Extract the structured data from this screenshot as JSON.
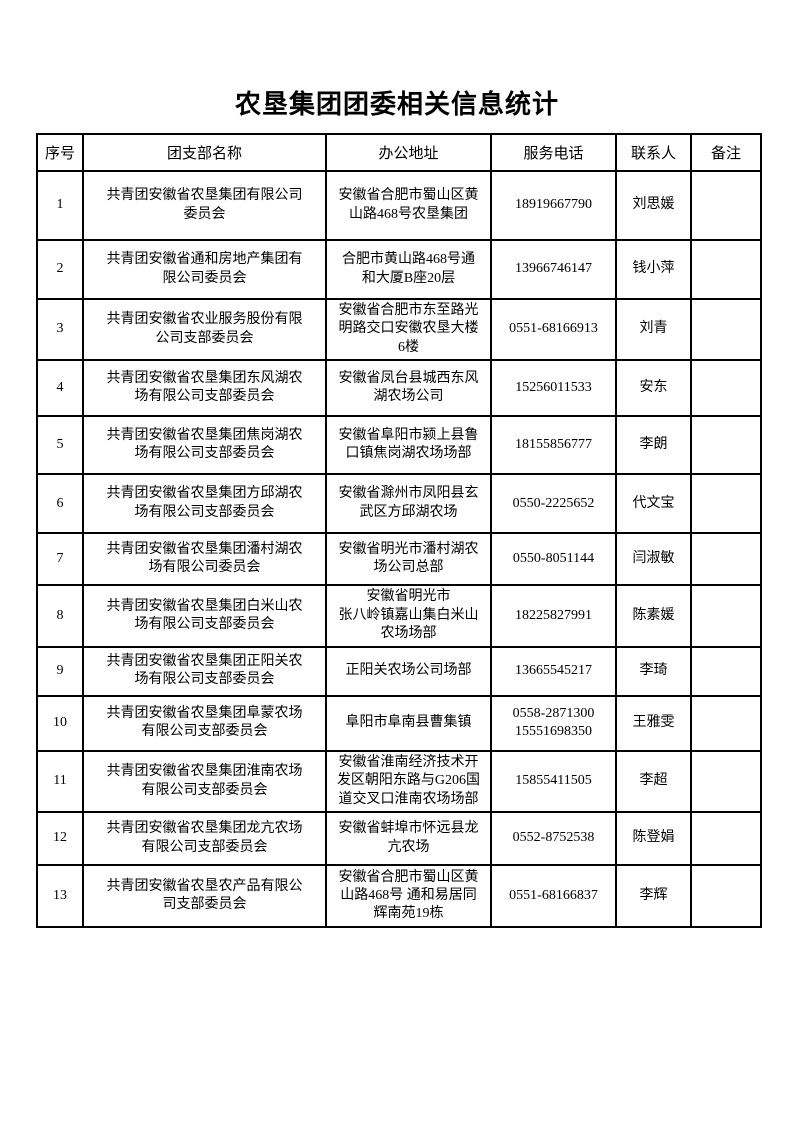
{
  "page": {
    "title": "农垦集团团委相关信息统计"
  },
  "table": {
    "headers": [
      "序号",
      "团支部名称",
      "办公地址",
      "服务电话",
      "联系人",
      "备注"
    ],
    "rows": [
      {
        "no": "1",
        "name": "共青团安徽省农垦集团有限公司\n委员会",
        "address": "安徽省合肥市蜀山区黄\n山路468号农垦集团",
        "phone": "18919667790",
        "contact": "刘思媛",
        "note": ""
      },
      {
        "no": "2",
        "name": "共青团安徽省通和房地产集团有\n限公司委员会",
        "address": "合肥市黄山路468号通\n和大厦B座20层",
        "phone": "13966746147",
        "contact": "钱小萍",
        "note": ""
      },
      {
        "no": "3",
        "name": "共青团安徽省农业服务股份有限\n公司支部委员会",
        "address": "安徽省合肥市东至路光\n明路交口安徽农垦大楼\n6楼",
        "phone": "0551-68166913",
        "contact": "刘青",
        "note": ""
      },
      {
        "no": "4",
        "name": "共青团安徽省农垦集团东风湖农\n场有限公司支部委员会",
        "address": "安徽省凤台县城西东风\n湖农场公司",
        "phone": "15256011533",
        "contact": "安东",
        "note": ""
      },
      {
        "no": "5",
        "name": "共青团安徽省农垦集团焦岗湖农\n场有限公司支部委员会",
        "address": "安徽省阜阳市颍上县鲁\n口镇焦岗湖农场场部",
        "phone": "18155856777",
        "contact": "李朗",
        "note": ""
      },
      {
        "no": "6",
        "name": "共青团安徽省农垦集团方邱湖农\n场有限公司支部委员会",
        "address": "安徽省滁州市凤阳县玄\n武区方邱湖农场",
        "phone": "0550-2225652",
        "contact": "代文宝",
        "note": ""
      },
      {
        "no": "7",
        "name": "共青团安徽省农垦集团潘村湖农\n场有限公司委员会",
        "address": "安徽省明光市潘村湖农\n场公司总部",
        "phone": "0550-8051144",
        "contact": "闫淑敏",
        "note": ""
      },
      {
        "no": "8",
        "name": "共青团安徽省农垦集团白米山农\n场有限公司支部委员会",
        "address": "安徽省明光市\n张八岭镇嘉山集白米山\n农场场部",
        "phone": "18225827991",
        "contact": "陈素媛",
        "note": ""
      },
      {
        "no": "9",
        "name": "共青团安徽省农垦集团正阳关农\n场有限公司支部委员会",
        "address": "正阳关农场公司场部",
        "phone": "13665545217",
        "contact": "李琦",
        "note": ""
      },
      {
        "no": "10",
        "name": "共青团安徽省农垦集团阜蒙农场\n有限公司支部委员会",
        "address": "阜阳市阜南县曹集镇",
        "phone": "0558-2871300\n15551698350",
        "contact": "王雅雯",
        "note": ""
      },
      {
        "no": "11",
        "name": "共青团安徽省农垦集团淮南农场\n有限公司支部委员会",
        "address": "安徽省淮南经济技术开\n发区朝阳东路与G206国\n道交叉口淮南农场场部",
        "phone": "15855411505",
        "contact": "李超",
        "note": ""
      },
      {
        "no": "12",
        "name": "共青团安徽省农垦集团龙亢农场\n有限公司支部委员会",
        "address": "安徽省蚌埠市怀远县龙\n亢农场",
        "phone": "0552-8752538",
        "contact": "陈登娟",
        "note": ""
      },
      {
        "no": "13",
        "name": "共青团安徽省农垦农产品有限公\n司支部委员会",
        "address": "安徽省合肥市蜀山区黄\n山路468号 通和易居同\n辉南苑19栋",
        "phone": "0551-68166837",
        "contact": "李辉",
        "note": ""
      }
    ]
  }
}
